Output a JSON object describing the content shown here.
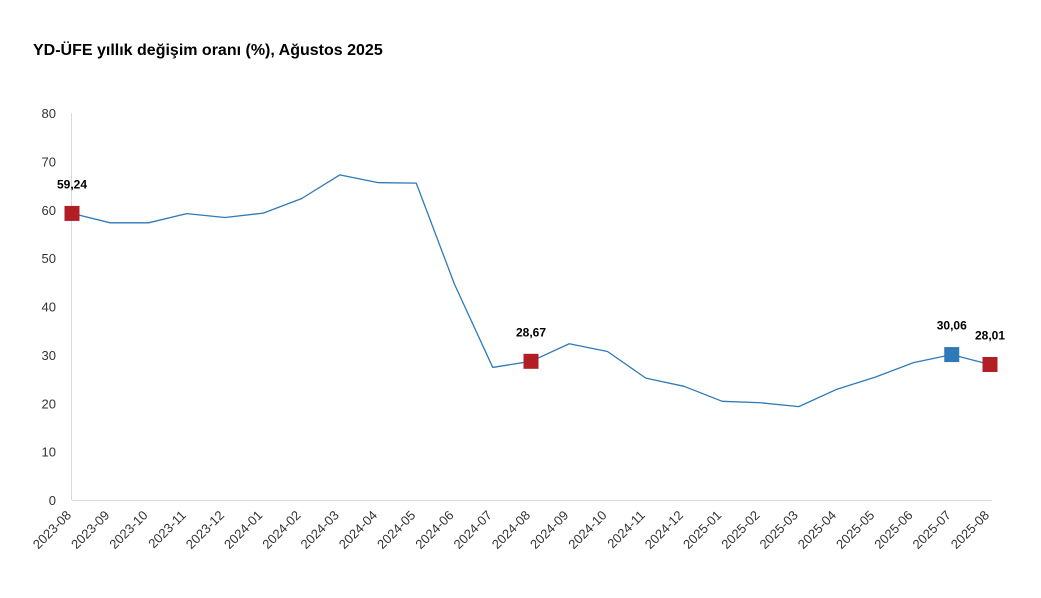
{
  "chart_data": {
    "type": "line",
    "title": "YD-ÜFE yıllık değişim oranı (%), Ağustos 2025",
    "xlabel": "",
    "ylabel": "",
    "ylim": [
      0,
      80
    ],
    "yticks": [
      0,
      10,
      20,
      30,
      40,
      50,
      60,
      70,
      80
    ],
    "grid": false,
    "legend": "none",
    "categories": [
      "2023-08",
      "2023-09",
      "2023-10",
      "2023-11",
      "2023-12",
      "2024-01",
      "2024-02",
      "2024-03",
      "2024-04",
      "2024-05",
      "2024-06",
      "2024-07",
      "2024-08",
      "2024-09",
      "2024-10",
      "2024-11",
      "2024-12",
      "2025-01",
      "2025-02",
      "2025-03",
      "2025-04",
      "2025-05",
      "2025-06",
      "2025-07",
      "2025-08"
    ],
    "series": [
      {
        "values": [
          59.24,
          57.3,
          57.3,
          59.2,
          58.4,
          59.3,
          62.3,
          67.2,
          65.6,
          65.5,
          44.6,
          27.4,
          28.67,
          32.3,
          30.7,
          25.2,
          23.5,
          20.4,
          20.1,
          19.3,
          22.9,
          25.4,
          28.4,
          30.06,
          28.01
        ]
      }
    ],
    "highlighted_points": [
      {
        "category": "2023-08",
        "value": 59.24,
        "label": "59,24",
        "color": "#b11f24"
      },
      {
        "category": "2024-08",
        "value": 28.67,
        "label": "28,67",
        "color": "#b11f24"
      },
      {
        "category": "2025-07",
        "value": 30.06,
        "label": "30,06",
        "color": "#2e7ab8"
      },
      {
        "category": "2025-08",
        "value": 28.01,
        "label": "28,01",
        "color": "#b11f24"
      }
    ],
    "colors": {
      "line": "#2e7ab8",
      "axis": "#d9d9d9",
      "text": "#333333"
    }
  }
}
